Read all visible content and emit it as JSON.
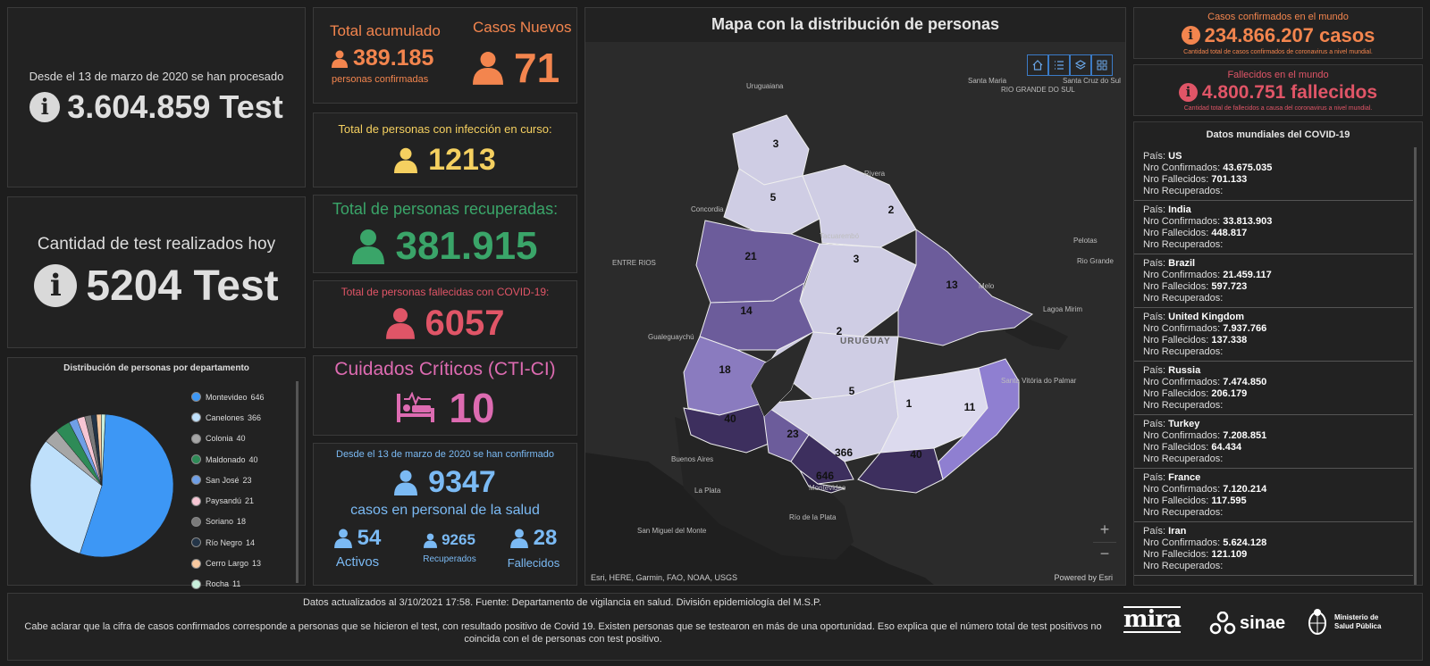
{
  "tests_total": {
    "caption": "Desde el 13 de marzo de 2020 se han procesado",
    "value": "3.604.859 Test"
  },
  "tests_today": {
    "caption": "Cantidad de test realizados hoy",
    "value": "5204 Test"
  },
  "distribution": {
    "title": "Distribución de personas por departamento",
    "items": [
      {
        "label": "Montevideo",
        "value": "646",
        "color": "#3d97f5"
      },
      {
        "label": "Canelones",
        "value": "366",
        "color": "#bfe0fb"
      },
      {
        "label": "Colonia",
        "value": "40",
        "color": "#a6a6a6"
      },
      {
        "label": "Maldonado",
        "value": "40",
        "color": "#2e8b57"
      },
      {
        "label": "San José",
        "value": "23",
        "color": "#6f9fe6"
      },
      {
        "label": "Paysandú",
        "value": "21",
        "color": "#f7c6d4"
      },
      {
        "label": "Soriano",
        "value": "18",
        "color": "#7a7a7a"
      },
      {
        "label": "Río Negro",
        "value": "14",
        "color": "#243548"
      },
      {
        "label": "Cerro Largo",
        "value": "13",
        "color": "#f8c9a0"
      },
      {
        "label": "Rocha",
        "value": "11",
        "color": "#c9efdc"
      }
    ]
  },
  "total_accum": {
    "label": "Total acumulado",
    "value": "389.185",
    "sub": "personas confirmadas"
  },
  "new_cases": {
    "label": "Casos Nuevos",
    "value": "71"
  },
  "active": {
    "label": "Total de personas con infección en curso:",
    "value": "1213"
  },
  "recovered": {
    "label": "Total de personas recuperadas:",
    "value": "381.915"
  },
  "deceased": {
    "label": "Total de personas fallecidas con COVID-19:",
    "value": "6057"
  },
  "critical": {
    "label": "Cuidados Críticos (CTI-CI)",
    "value": "10"
  },
  "health_staff": {
    "caption": "Desde el 13 de marzo de 2020 se han confirmado",
    "value": "9347",
    "sub": "casos en personal de la salud",
    "active": {
      "value": "54",
      "label": "Activos"
    },
    "recovered": {
      "value": "9265",
      "label": "Recuperados"
    },
    "deceased": {
      "value": "28",
      "label": "Fallecidos"
    }
  },
  "map": {
    "title": "Mapa con la distribución de personas",
    "attribution": "Esri, HERE, Garmin, FAO, NOAA, USGS",
    "powered": "Powered by Esri",
    "zoom_in": "+",
    "zoom_out": "−",
    "country_label": "URUGUAY",
    "places": [
      "Uruguaiana",
      "Santa Maria",
      "Santa Cruz do Sul",
      "RIO GRANDE DO SUL",
      "Rivera",
      "Concordia",
      "Tacuarembó",
      "Pelotas",
      "Rio Grande",
      "ENTRE RIOS",
      "Melo",
      "Lagoa Mirim",
      "Gualeguaychú",
      "Santa Vitória do Palmar",
      "Buenos Aires",
      "La Plata",
      "Montevideo",
      "San Miguel del Monte",
      "Río de la Plata"
    ],
    "dept_values": [
      "3",
      "5",
      "2",
      "21",
      "3",
      "13",
      "14",
      "2",
      "18",
      "5",
      "1",
      "11",
      "40",
      "23",
      "366",
      "40",
      "646"
    ]
  },
  "world_confirmed": {
    "title": "Casos confirmados en el mundo",
    "value": "234.866.207 casos",
    "sub": "Cantidad total de casos confirmados de coronavirus a nivel mundial."
  },
  "world_deaths": {
    "title": "Fallecidos en el mundo",
    "value": "4.800.751 fallecidos",
    "sub": "Cantidad total de fallecidos a causa del coronavirus a nivel mundial."
  },
  "world_data": {
    "title": "Datos mundiales del COVID-19",
    "label_country": "País:",
    "label_confirmed": "Nro Confirmados:",
    "label_deaths": "Nro Fallecidos:",
    "label_recovered": "Nro Recuperados:",
    "rows": [
      {
        "country": "US",
        "confirmed": "43.675.035",
        "deaths": "701.133"
      },
      {
        "country": "India",
        "confirmed": "33.813.903",
        "deaths": "448.817"
      },
      {
        "country": "Brazil",
        "confirmed": "21.459.117",
        "deaths": "597.723"
      },
      {
        "country": "United Kingdom",
        "confirmed": "7.937.766",
        "deaths": "137.338"
      },
      {
        "country": "Russia",
        "confirmed": "7.474.850",
        "deaths": "206.179"
      },
      {
        "country": "Turkey",
        "confirmed": "7.208.851",
        "deaths": "64.434"
      },
      {
        "country": "France",
        "confirmed": "7.120.214",
        "deaths": "117.595"
      },
      {
        "country": "Iran",
        "confirmed": "5.624.128",
        "deaths": "121.109"
      }
    ]
  },
  "footer": {
    "updated": "Datos actualizados al 3/10/2021 17:58. Fuente: Departamento de vigilancia en salud. División epidemiología del M.S.P.",
    "note": "Cabe aclarar que la cifra de casos confirmados corresponde a personas que se hicieron el test, con resultado positivo de Covid 19. Existen personas que se testearon en más de una oportunidad. Eso explica que el número total de test positivos no coincida con el de personas con test positivo.",
    "logo1": "mira",
    "logo2": "sinae",
    "logo3": "Ministerio de Salud Pública"
  },
  "colors": {
    "orange": "#f3854e",
    "yellow": "#f5d060",
    "green": "#3aa569",
    "red": "#e05567",
    "pink": "#dd6bb1",
    "blue": "#7bbaf4"
  }
}
